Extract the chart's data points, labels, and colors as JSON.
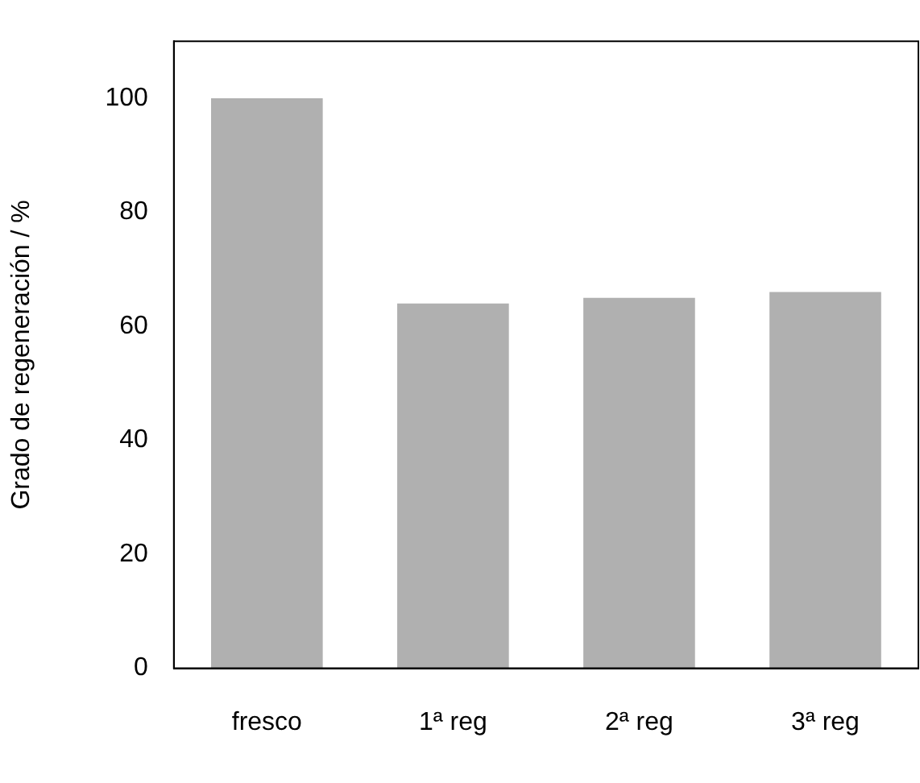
{
  "chart_data": {
    "type": "bar",
    "ylabel": "Grado de regeneración / %",
    "categories": [
      "fresco",
      "1ª reg",
      "2ª reg",
      "3ª reg"
    ],
    "values": [
      100,
      64,
      65,
      66
    ],
    "color": "#b0b0b0",
    "ylim": [
      0,
      110
    ],
    "yticks": [
      0,
      20,
      40,
      60,
      80,
      100
    ],
    "grid": false,
    "legend": false
  }
}
